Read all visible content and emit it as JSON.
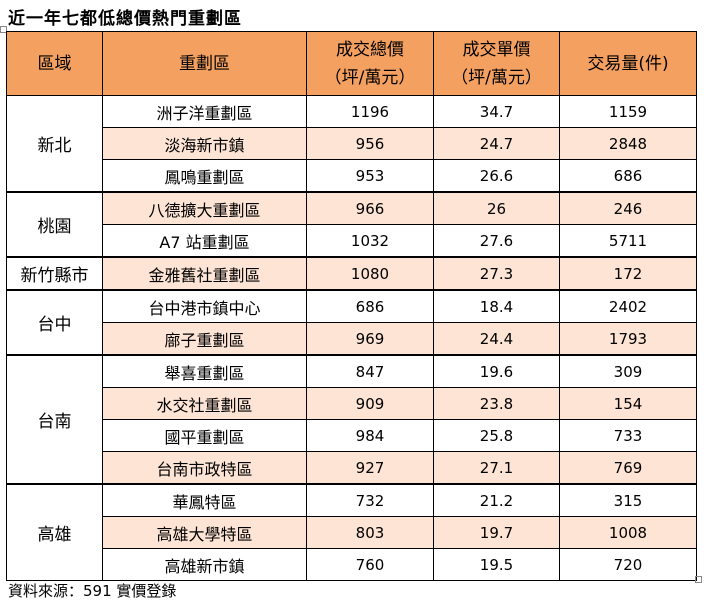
{
  "title": "近一年七都低總價熱門重劃區",
  "header": {
    "region": "區域",
    "district": "重劃區",
    "total_price_line1": "成交總價",
    "total_price_line2": "（坪/萬元）",
    "unit_price_line1": "成交單價",
    "unit_price_line2": "（坪/萬元）",
    "volume": "交易量(件)"
  },
  "groups": [
    {
      "region": "新北",
      "rows": [
        {
          "district": "洲子洋重劃區",
          "total": "1196",
          "unit": "34.7",
          "volume": "1159"
        },
        {
          "district": "淡海新市鎮",
          "total": "956",
          "unit": "24.7",
          "volume": "2848"
        },
        {
          "district": "鳳鳴重劃區",
          "total": "953",
          "unit": "26.6",
          "volume": "686"
        }
      ]
    },
    {
      "region": "桃園",
      "rows": [
        {
          "district": "八德擴大重劃區",
          "total": "966",
          "unit": "26",
          "volume": "246"
        },
        {
          "district": "A7 站重劃區",
          "total": "1032",
          "unit": "27.6",
          "volume": "5711"
        }
      ]
    },
    {
      "region": "新竹縣市",
      "rows": [
        {
          "district": "金雅舊社重劃區",
          "total": "1080",
          "unit": "27.3",
          "volume": "172"
        }
      ]
    },
    {
      "region": "台中",
      "rows": [
        {
          "district": "台中港市鎮中心",
          "total": "686",
          "unit": "18.4",
          "volume": "2402"
        },
        {
          "district": "廍子重劃區",
          "total": "969",
          "unit": "24.4",
          "volume": "1793"
        }
      ]
    },
    {
      "region": "台南",
      "rows": [
        {
          "district": "舉喜重劃區",
          "total": "847",
          "unit": "19.6",
          "volume": "309"
        },
        {
          "district": "水交社重劃區",
          "total": "909",
          "unit": "23.8",
          "volume": "154"
        },
        {
          "district": "國平重劃區",
          "total": "984",
          "unit": "25.8",
          "volume": "733"
        },
        {
          "district": "台南市政特區",
          "total": "927",
          "unit": "27.1",
          "volume": "769"
        }
      ]
    },
    {
      "region": "高雄",
      "rows": [
        {
          "district": "華鳳特區",
          "total": "732",
          "unit": "21.2",
          "volume": "315"
        },
        {
          "district": "高雄大學特區",
          "total": "803",
          "unit": "19.7",
          "volume": "1008"
        },
        {
          "district": "高雄新市鎮",
          "total": "760",
          "unit": "19.5",
          "volume": "720"
        }
      ]
    }
  ],
  "source": "資料來源：591 實價登錄",
  "colors": {
    "header_bg": "#f4a060",
    "row_tint": "#fde4d4"
  }
}
